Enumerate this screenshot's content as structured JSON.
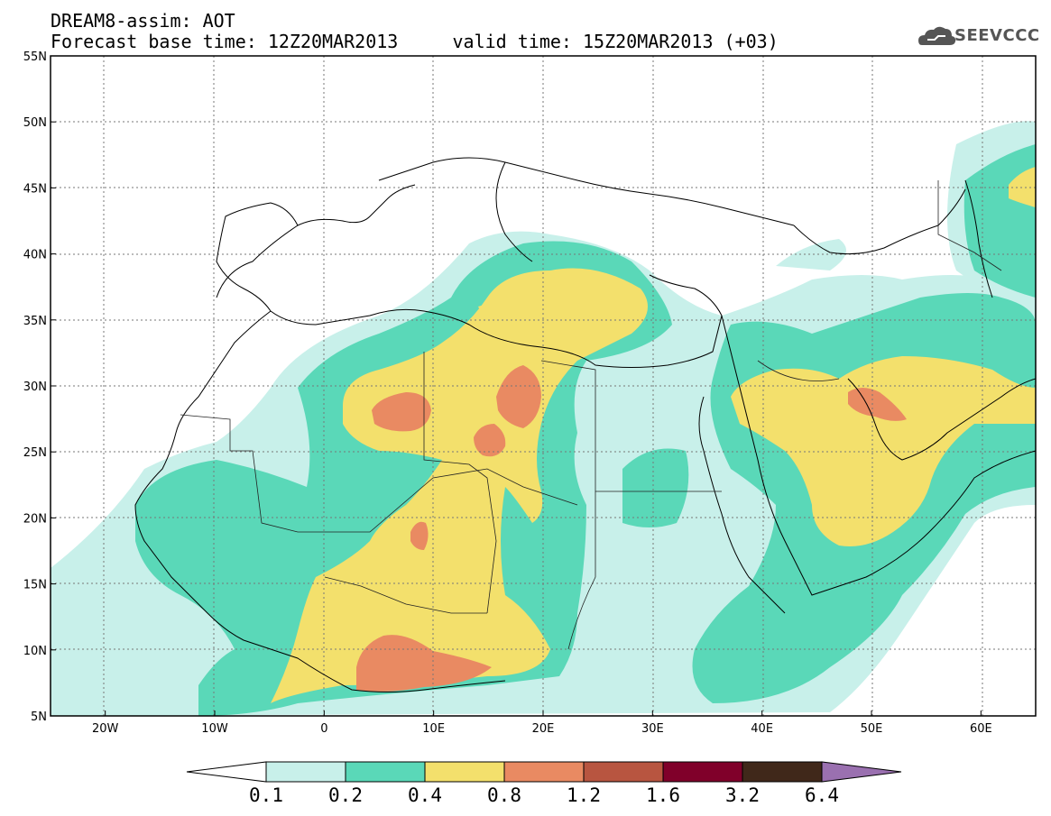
{
  "header": {
    "title_line1": "DREAM8-assim: AOT",
    "title_line2": "Forecast base time: 12Z20MAR2013     valid time: 15Z20MAR2013 (+03)",
    "logo_text": "SEEVCCC"
  },
  "map": {
    "lon_ticks": [
      "20W",
      "10W",
      "0",
      "10E",
      "20E",
      "30E",
      "40E",
      "50E",
      "60E"
    ],
    "lat_ticks": [
      "55N",
      "50N",
      "45N",
      "40N",
      "35N",
      "30N",
      "25N",
      "20N",
      "15N",
      "10N",
      "5N"
    ],
    "lon_range": [
      -25,
      65
    ],
    "lat_range": [
      5,
      55
    ],
    "grid": true
  },
  "colorbar": {
    "labels": [
      "0.1",
      "0.2",
      "0.4",
      "0.8",
      "1.2",
      "1.6",
      "3.2",
      "6.4"
    ],
    "colors": [
      "#c8f0ea",
      "#5ad8b8",
      "#f3e06c",
      "#e98a62",
      "#b85540",
      "#80002a",
      "#40281a",
      "#9a70b0"
    ],
    "under_color": "#ffffff"
  },
  "legend_colors": {
    "c1": "#c8f0ea",
    "c2": "#5ad8b8",
    "c3": "#f3e06c",
    "c4": "#e98a62"
  }
}
